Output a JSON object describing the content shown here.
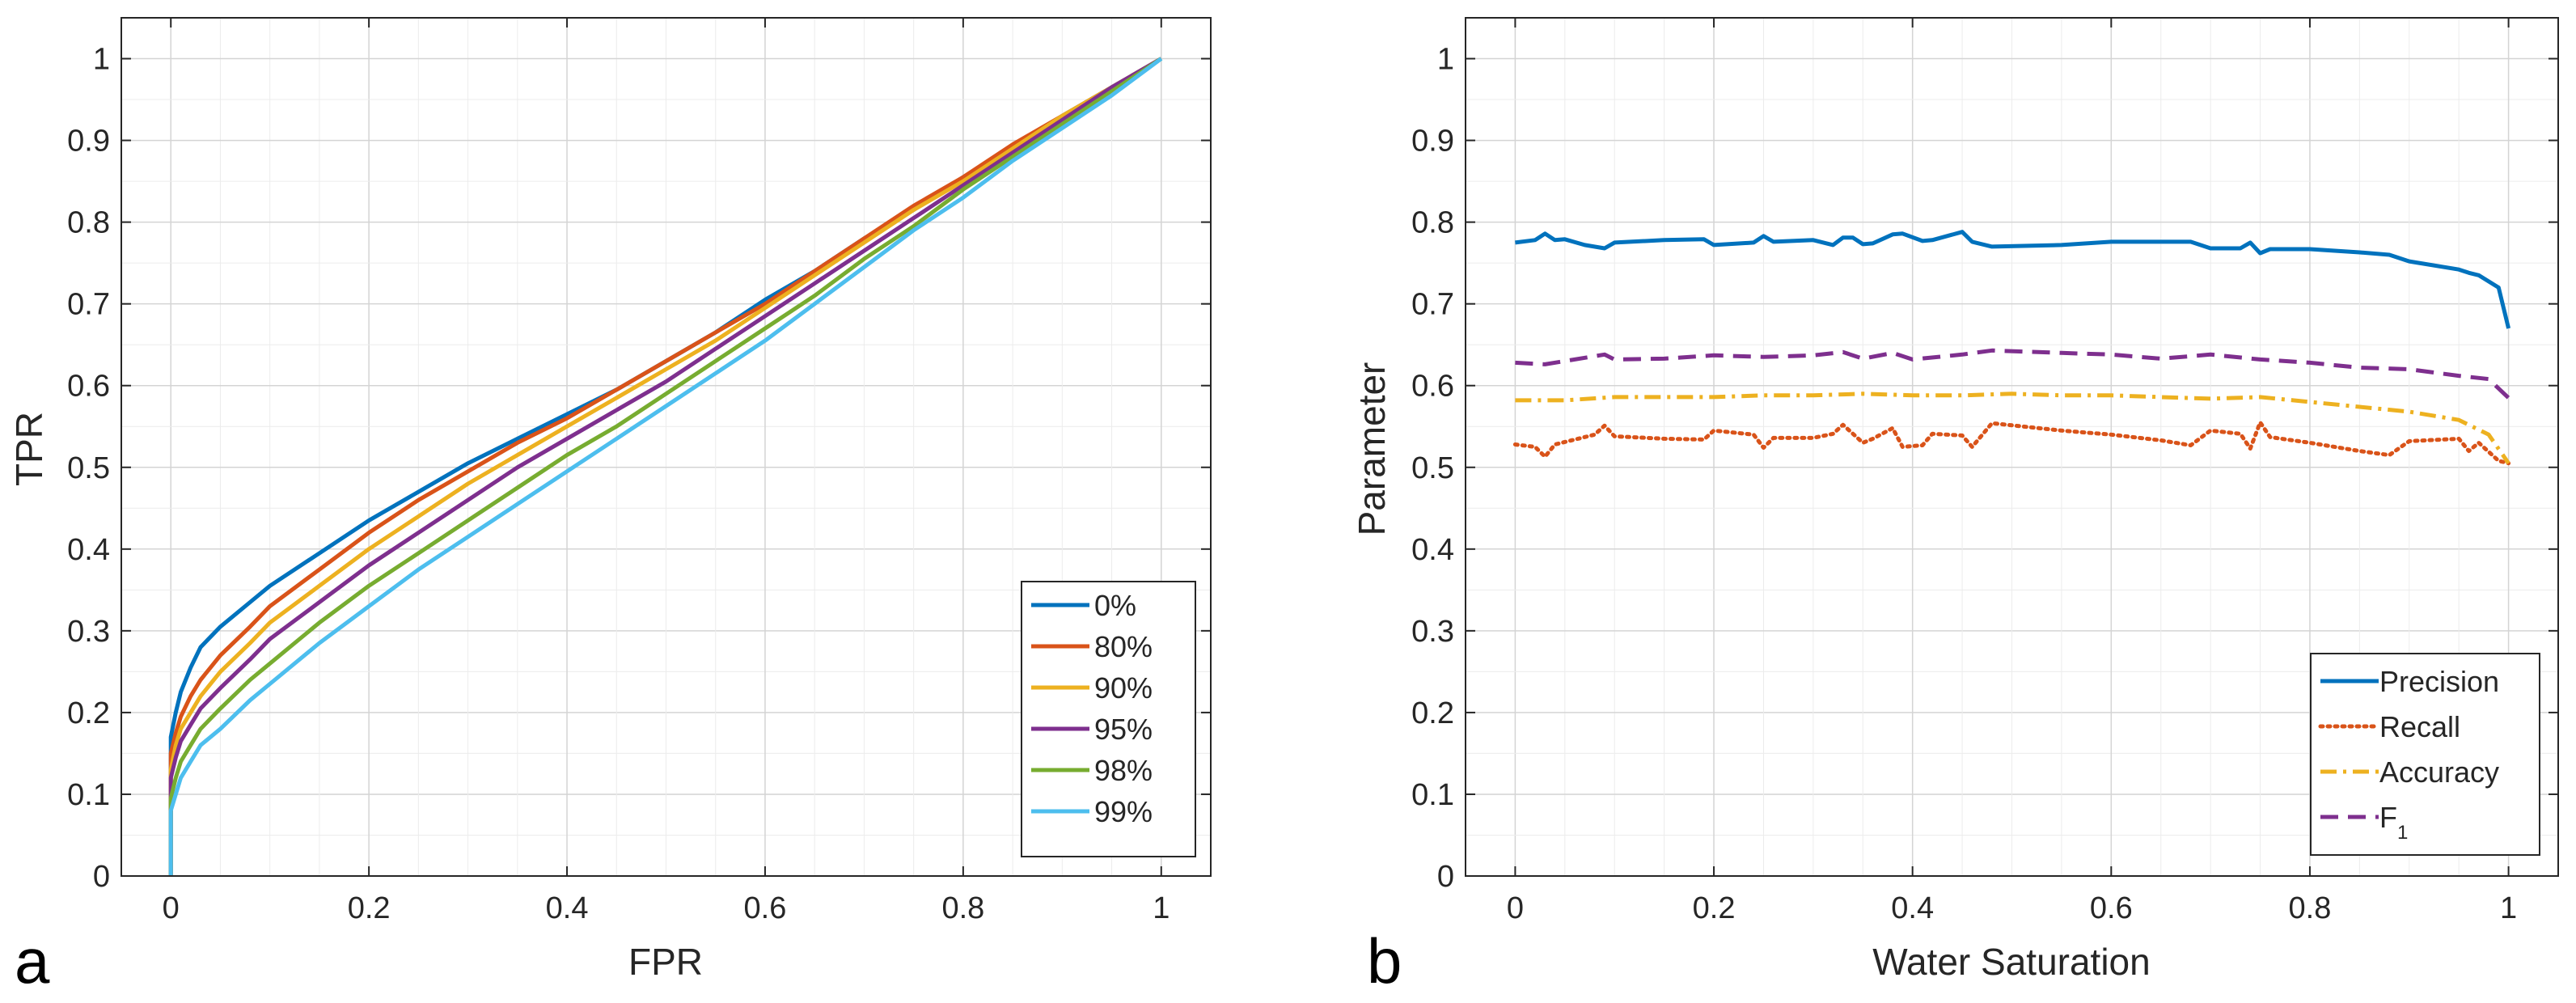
{
  "chart_data": [
    {
      "type": "line",
      "panel_label": "a",
      "xlabel": "FPR",
      "ylabel": "TPR",
      "xlim": [
        -0.05,
        1.05
      ],
      "ylim": [
        0,
        1.05
      ],
      "xticks": [
        "0",
        "0.2",
        "0.4",
        "0.6",
        "0.8",
        "1"
      ],
      "yticks": [
        "0",
        "0.1",
        "0.2",
        "0.3",
        "0.4",
        "0.5",
        "0.6",
        "0.7",
        "0.8",
        "0.9",
        "1"
      ],
      "grid": true,
      "legend_position": "bottom-right",
      "series": [
        {
          "name": "0%",
          "color": "#0072BD",
          "style": "solid",
          "x": [
            0,
            0,
            0.005,
            0.01,
            0.02,
            0.03,
            0.05,
            0.08,
            0.1,
            0.15,
            0.2,
            0.25,
            0.3,
            0.35,
            0.4,
            0.45,
            0.5,
            0.55,
            0.6,
            0.65,
            0.7,
            0.75,
            0.8,
            0.85,
            0.9,
            0.95,
            1.0
          ],
          "y": [
            0,
            0.17,
            0.2,
            0.225,
            0.255,
            0.28,
            0.305,
            0.335,
            0.355,
            0.395,
            0.435,
            0.47,
            0.505,
            0.535,
            0.565,
            0.595,
            0.63,
            0.665,
            0.705,
            0.74,
            0.78,
            0.815,
            0.855,
            0.89,
            0.93,
            0.965,
            1.0
          ]
        },
        {
          "name": "80%",
          "color": "#D95319",
          "style": "solid",
          "x": [
            0,
            0,
            0.005,
            0.01,
            0.02,
            0.03,
            0.05,
            0.08,
            0.1,
            0.15,
            0.2,
            0.25,
            0.3,
            0.35,
            0.4,
            0.45,
            0.5,
            0.55,
            0.6,
            0.65,
            0.7,
            0.75,
            0.8,
            0.85,
            0.9,
            0.95,
            1.0
          ],
          "y": [
            0,
            0.15,
            0.175,
            0.195,
            0.22,
            0.24,
            0.27,
            0.305,
            0.33,
            0.375,
            0.42,
            0.46,
            0.495,
            0.53,
            0.56,
            0.595,
            0.63,
            0.665,
            0.7,
            0.74,
            0.78,
            0.82,
            0.855,
            0.895,
            0.93,
            0.965,
            1.0
          ]
        },
        {
          "name": "90%",
          "color": "#EDB120",
          "style": "solid",
          "x": [
            0,
            0,
            0.005,
            0.01,
            0.02,
            0.03,
            0.05,
            0.08,
            0.1,
            0.15,
            0.2,
            0.25,
            0.3,
            0.35,
            0.4,
            0.45,
            0.5,
            0.55,
            0.6,
            0.65,
            0.7,
            0.75,
            0.8,
            0.85,
            0.9,
            0.95,
            1.0
          ],
          "y": [
            0,
            0.13,
            0.16,
            0.18,
            0.2,
            0.22,
            0.25,
            0.285,
            0.31,
            0.355,
            0.4,
            0.44,
            0.48,
            0.515,
            0.55,
            0.585,
            0.62,
            0.655,
            0.695,
            0.735,
            0.775,
            0.815,
            0.85,
            0.89,
            0.93,
            0.965,
            1.0
          ]
        },
        {
          "name": "95%",
          "color": "#7E2F8E",
          "style": "solid",
          "x": [
            0,
            0,
            0.005,
            0.01,
            0.02,
            0.03,
            0.05,
            0.08,
            0.1,
            0.15,
            0.2,
            0.25,
            0.3,
            0.35,
            0.4,
            0.45,
            0.5,
            0.55,
            0.6,
            0.65,
            0.7,
            0.75,
            0.8,
            0.85,
            0.9,
            0.95,
            1.0
          ],
          "y": [
            0,
            0.12,
            0.145,
            0.165,
            0.185,
            0.205,
            0.23,
            0.265,
            0.29,
            0.335,
            0.38,
            0.42,
            0.46,
            0.5,
            0.535,
            0.57,
            0.605,
            0.645,
            0.685,
            0.725,
            0.765,
            0.805,
            0.845,
            0.885,
            0.925,
            0.965,
            1.0
          ]
        },
        {
          "name": "98%",
          "color": "#77AC30",
          "style": "solid",
          "x": [
            0,
            0,
            0.005,
            0.01,
            0.02,
            0.03,
            0.05,
            0.08,
            0.1,
            0.15,
            0.2,
            0.25,
            0.3,
            0.35,
            0.4,
            0.45,
            0.5,
            0.55,
            0.6,
            0.65,
            0.7,
            0.75,
            0.8,
            0.85,
            0.9,
            0.95,
            1.0
          ],
          "y": [
            0,
            0.095,
            0.12,
            0.14,
            0.16,
            0.18,
            0.205,
            0.24,
            0.26,
            0.31,
            0.355,
            0.395,
            0.435,
            0.475,
            0.515,
            0.55,
            0.59,
            0.63,
            0.67,
            0.71,
            0.755,
            0.795,
            0.84,
            0.88,
            0.92,
            0.96,
            1.0
          ]
        },
        {
          "name": "99%",
          "color": "#4DBEEE",
          "style": "solid",
          "x": [
            0,
            0,
            0.005,
            0.01,
            0.02,
            0.03,
            0.05,
            0.08,
            0.1,
            0.15,
            0.2,
            0.25,
            0.3,
            0.35,
            0.4,
            0.45,
            0.5,
            0.55,
            0.6,
            0.65,
            0.7,
            0.75,
            0.8,
            0.85,
            0.9,
            0.95,
            1.0
          ],
          "y": [
            0,
            0.08,
            0.1,
            0.12,
            0.14,
            0.16,
            0.18,
            0.215,
            0.235,
            0.285,
            0.33,
            0.375,
            0.415,
            0.455,
            0.495,
            0.535,
            0.575,
            0.615,
            0.655,
            0.7,
            0.745,
            0.79,
            0.83,
            0.875,
            0.915,
            0.955,
            1.0
          ]
        }
      ]
    },
    {
      "type": "line",
      "panel_label": "b",
      "xlabel": "Water Saturation",
      "ylabel": "Parameter",
      "xlim": [
        -0.05,
        1.05
      ],
      "ylim": [
        0,
        1.05
      ],
      "xticks": [
        "0",
        "0.2",
        "0.4",
        "0.6",
        "0.8",
        "1"
      ],
      "yticks": [
        "0",
        "0.1",
        "0.2",
        "0.3",
        "0.4",
        "0.5",
        "0.6",
        "0.7",
        "0.8",
        "0.9",
        "1"
      ],
      "grid": true,
      "legend_position": "bottom-right",
      "series": [
        {
          "name": "Precision",
          "color": "#0072BD",
          "style": "solid",
          "x": [
            0,
            0.02,
            0.03,
            0.04,
            0.05,
            0.07,
            0.09,
            0.1,
            0.15,
            0.19,
            0.2,
            0.24,
            0.25,
            0.26,
            0.3,
            0.32,
            0.33,
            0.34,
            0.35,
            0.36,
            0.38,
            0.39,
            0.41,
            0.42,
            0.45,
            0.46,
            0.48,
            0.55,
            0.6,
            0.65,
            0.68,
            0.7,
            0.73,
            0.74,
            0.75,
            0.76,
            0.8,
            0.85,
            0.88,
            0.9,
            0.95,
            0.96,
            0.97,
            0.99,
            1.0
          ],
          "y": [
            0.775,
            0.778,
            0.786,
            0.778,
            0.779,
            0.772,
            0.768,
            0.775,
            0.778,
            0.779,
            0.772,
            0.775,
            0.783,
            0.776,
            0.778,
            0.772,
            0.781,
            0.781,
            0.773,
            0.774,
            0.785,
            0.786,
            0.777,
            0.778,
            0.788,
            0.776,
            0.77,
            0.772,
            0.776,
            0.776,
            0.776,
            0.768,
            0.768,
            0.775,
            0.762,
            0.767,
            0.767,
            0.763,
            0.76,
            0.752,
            0.742,
            0.738,
            0.735,
            0.72,
            0.67
          ]
        },
        {
          "name": "Recall",
          "color": "#D95319",
          "style": "dotted",
          "x": [
            0,
            0.02,
            0.03,
            0.04,
            0.08,
            0.09,
            0.1,
            0.15,
            0.19,
            0.2,
            0.24,
            0.25,
            0.26,
            0.3,
            0.32,
            0.33,
            0.34,
            0.35,
            0.36,
            0.38,
            0.39,
            0.41,
            0.42,
            0.45,
            0.46,
            0.48,
            0.55,
            0.6,
            0.65,
            0.68,
            0.7,
            0.73,
            0.74,
            0.75,
            0.76,
            0.8,
            0.85,
            0.88,
            0.9,
            0.95,
            0.96,
            0.97,
            0.99,
            1.0
          ],
          "y": [
            0.528,
            0.525,
            0.513,
            0.528,
            0.54,
            0.551,
            0.538,
            0.535,
            0.534,
            0.545,
            0.54,
            0.524,
            0.536,
            0.536,
            0.541,
            0.552,
            0.541,
            0.53,
            0.535,
            0.548,
            0.525,
            0.527,
            0.541,
            0.539,
            0.525,
            0.554,
            0.545,
            0.54,
            0.533,
            0.527,
            0.545,
            0.541,
            0.523,
            0.555,
            0.537,
            0.53,
            0.52,
            0.515,
            0.532,
            0.535,
            0.52,
            0.53,
            0.508,
            0.505
          ]
        },
        {
          "name": "Accuracy",
          "color": "#EDB120",
          "style": "dashdot",
          "x": [
            0,
            0.05,
            0.1,
            0.15,
            0.2,
            0.25,
            0.3,
            0.35,
            0.4,
            0.45,
            0.5,
            0.55,
            0.6,
            0.65,
            0.7,
            0.75,
            0.8,
            0.85,
            0.9,
            0.95,
            0.98,
            1.0
          ],
          "y": [
            0.582,
            0.582,
            0.586,
            0.586,
            0.586,
            0.588,
            0.588,
            0.59,
            0.588,
            0.588,
            0.59,
            0.588,
            0.588,
            0.586,
            0.584,
            0.586,
            0.58,
            0.574,
            0.568,
            0.558,
            0.54,
            0.505
          ]
        },
        {
          "name": "F1",
          "color": "#7E2F8E",
          "style": "dashed",
          "x": [
            0,
            0.03,
            0.05,
            0.09,
            0.1,
            0.15,
            0.2,
            0.25,
            0.3,
            0.33,
            0.35,
            0.38,
            0.4,
            0.45,
            0.48,
            0.55,
            0.6,
            0.65,
            0.7,
            0.75,
            0.8,
            0.85,
            0.9,
            0.95,
            0.98,
            1.0
          ],
          "y": [
            0.628,
            0.626,
            0.63,
            0.638,
            0.632,
            0.633,
            0.637,
            0.635,
            0.637,
            0.641,
            0.633,
            0.64,
            0.632,
            0.638,
            0.643,
            0.64,
            0.638,
            0.633,
            0.638,
            0.632,
            0.628,
            0.622,
            0.62,
            0.612,
            0.608,
            0.585
          ]
        }
      ]
    }
  ]
}
